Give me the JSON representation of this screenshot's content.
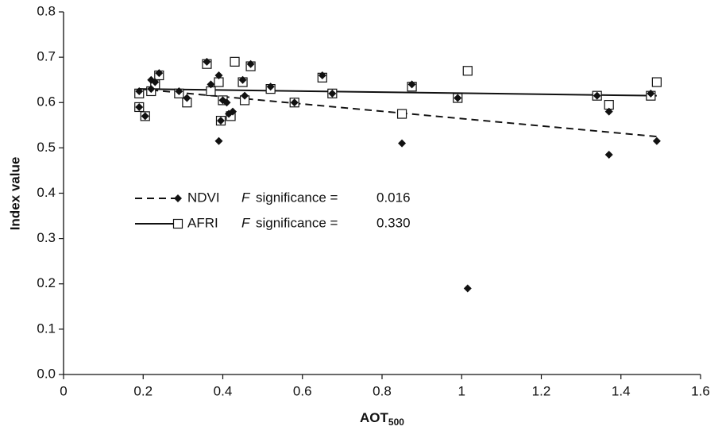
{
  "chart_data": {
    "type": "scatter",
    "xlabel": "AOT",
    "xlabel_subscript": "500",
    "ylabel": "Index value",
    "xlim": [
      0,
      1.6
    ],
    "xticks": [
      0,
      0.2,
      0.4,
      0.6,
      0.8,
      1,
      1.2,
      1.4,
      1.6
    ],
    "ylim": [
      0,
      0.8
    ],
    "yticks": [
      {
        "value": 0,
        "label": "0.0"
      },
      0.1,
      0.2,
      0.3,
      0.4,
      0.5,
      0.6,
      0.7,
      0.8
    ],
    "series": [
      {
        "name": "NDVI",
        "marker": "diamond",
        "color": "#111111",
        "dashed": true,
        "stat_symbol": "F",
        "stat_text": "significance =",
        "stat_value": "0.016",
        "x": [
          0.19,
          0.19,
          0.205,
          0.22,
          0.22,
          0.23,
          0.24,
          0.29,
          0.31,
          0.36,
          0.37,
          0.39,
          0.39,
          0.395,
          0.4,
          0.41,
          0.415,
          0.425,
          0.45,
          0.455,
          0.47,
          0.52,
          0.58,
          0.65,
          0.675,
          0.85,
          0.875,
          0.99,
          1.015,
          1.34,
          1.37,
          1.37,
          1.475,
          1.49
        ],
        "values": [
          0.59,
          0.625,
          0.57,
          0.65,
          0.63,
          0.645,
          0.665,
          0.625,
          0.61,
          0.69,
          0.64,
          0.66,
          0.515,
          0.56,
          0.605,
          0.6,
          0.575,
          0.58,
          0.65,
          0.615,
          0.685,
          0.635,
          0.6,
          0.66,
          0.62,
          0.51,
          0.64,
          0.61,
          0.19,
          0.615,
          0.58,
          0.485,
          0.62,
          0.515
        ],
        "trendline": {
          "x": [
            0.19,
            1.49
          ],
          "values": [
            0.63,
            0.525
          ]
        }
      },
      {
        "name": "AFRI",
        "marker": "square",
        "color": "#111111",
        "dashed": false,
        "stat_symbol": "F",
        "stat_text": "significance =",
        "stat_value": "0.330",
        "x": [
          0.19,
          0.19,
          0.205,
          0.22,
          0.23,
          0.24,
          0.29,
          0.31,
          0.36,
          0.37,
          0.39,
          0.395,
          0.4,
          0.42,
          0.43,
          0.45,
          0.455,
          0.47,
          0.52,
          0.58,
          0.65,
          0.675,
          0.85,
          0.875,
          0.99,
          1.015,
          1.34,
          1.37,
          1.475,
          1.49
        ],
        "values": [
          0.59,
          0.62,
          0.57,
          0.625,
          0.64,
          0.66,
          0.62,
          0.6,
          0.685,
          0.625,
          0.645,
          0.56,
          0.605,
          0.57,
          0.69,
          0.645,
          0.605,
          0.68,
          0.63,
          0.6,
          0.655,
          0.62,
          0.575,
          0.635,
          0.61,
          0.67,
          0.615,
          0.595,
          0.615,
          0.645
        ],
        "trendline": {
          "x": [
            0.19,
            1.49
          ],
          "values": [
            0.63,
            0.615
          ]
        }
      }
    ]
  }
}
